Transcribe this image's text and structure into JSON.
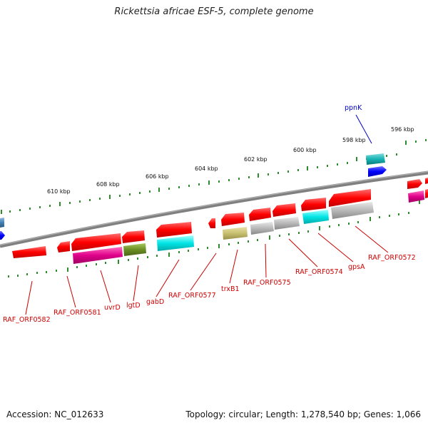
{
  "title": "Rickettsia africae ESF-5, complete genome",
  "accession": "Accession: NC_012633",
  "summary": "Topology: circular; Length: 1,278,540 bp; Genes: 1,066",
  "kbp_labels": [
    "596 kbp",
    "598 kbp",
    "600 kbp",
    "602 kbp",
    "604 kbp",
    "606 kbp",
    "608 kbp",
    "610 kbp"
  ],
  "gene_labels": [
    "ppnK",
    "RAF_ORF0572",
    "gpsA",
    "RAF_ORF0574",
    "RAF_ORF0575",
    "trxB1",
    "RAF_ORF0577",
    "gabD",
    "lgtD",
    "uvrD",
    "RAF_ORF0581",
    "RAF_ORF0582"
  ],
  "colors": {
    "backbone": "#808080",
    "tick": "#2e8b2e",
    "label_red": "#cc0000",
    "label_blue": "#0000cc",
    "gene_red": "#ff0000",
    "gene_blue": "#0000ff",
    "gene_cyan": "#00e5e5",
    "gene_teal": "#18b4b4",
    "gene_magenta": "#e0008a",
    "gene_olive": "#6b8e23",
    "gene_khaki": "#c8c070",
    "gene_gray": "#b8b8b8",
    "gene_steel": "#4682b4"
  }
}
